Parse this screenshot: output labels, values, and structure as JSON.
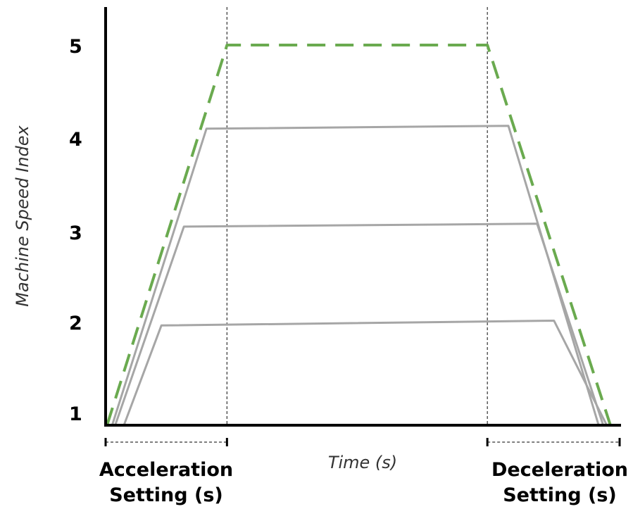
{
  "chart_data": {
    "type": "line",
    "ylabel": "Machine Speed Index",
    "xlabel": "Time (s)",
    "yticks": [
      "1",
      "2",
      "3",
      "4",
      "5"
    ],
    "ylim": [
      1,
      5
    ],
    "xlim": [
      0,
      100
    ],
    "grid": false,
    "annotations": {
      "acceleration": [
        "Acceleration",
        "Setting (s)"
      ],
      "deceleration": [
        "Deceleration",
        "Setting (s)"
      ]
    },
    "guide_lines_x": [
      23.4,
      74.2
    ],
    "colors": {
      "setpoint": "#6aaa4f",
      "profiles": "#a6a6a6",
      "axis": "#000000"
    },
    "series": [
      {
        "style": "dashed",
        "color": "#6aaa4f",
        "x": [
          0,
          23.4,
          74.2,
          98.2
        ],
        "y": [
          1,
          5,
          5,
          1
        ]
      },
      {
        "style": "solid",
        "color": "#a6a6a6",
        "x": [
          1.0,
          19.4,
          78.3,
          95.9
        ],
        "y": [
          1,
          4.12,
          4.15,
          1
        ]
      },
      {
        "style": "solid",
        "color": "#a6a6a6",
        "x": [
          1.6,
          15.0,
          83.9,
          96.8
        ],
        "y": [
          1,
          3.09,
          3.12,
          1
        ]
      },
      {
        "style": "solid",
        "color": "#a6a6a6",
        "x": [
          3.3,
          10.6,
          87.2,
          97.5
        ],
        "y": [
          1,
          2.05,
          2.1,
          1
        ]
      }
    ]
  }
}
